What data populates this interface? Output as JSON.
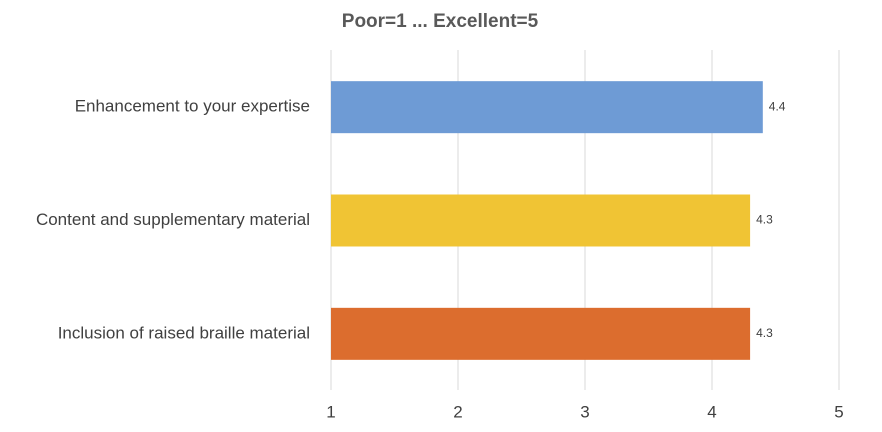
{
  "chart_data": {
    "type": "bar",
    "orientation": "horizontal",
    "title": "Poor=1 ... Excellent=5",
    "categories": [
      "Enhancement to your expertise",
      "Content and supplementary material",
      "Inclusion of raised braille material"
    ],
    "values": [
      4.4,
      4.3,
      4.3
    ],
    "colors": [
      "#6e9bd5",
      "#f0c434",
      "#dc6d2e"
    ],
    "xlim": [
      1,
      5
    ],
    "xticks": [
      1,
      2,
      3,
      4,
      5
    ],
    "grid": true
  }
}
